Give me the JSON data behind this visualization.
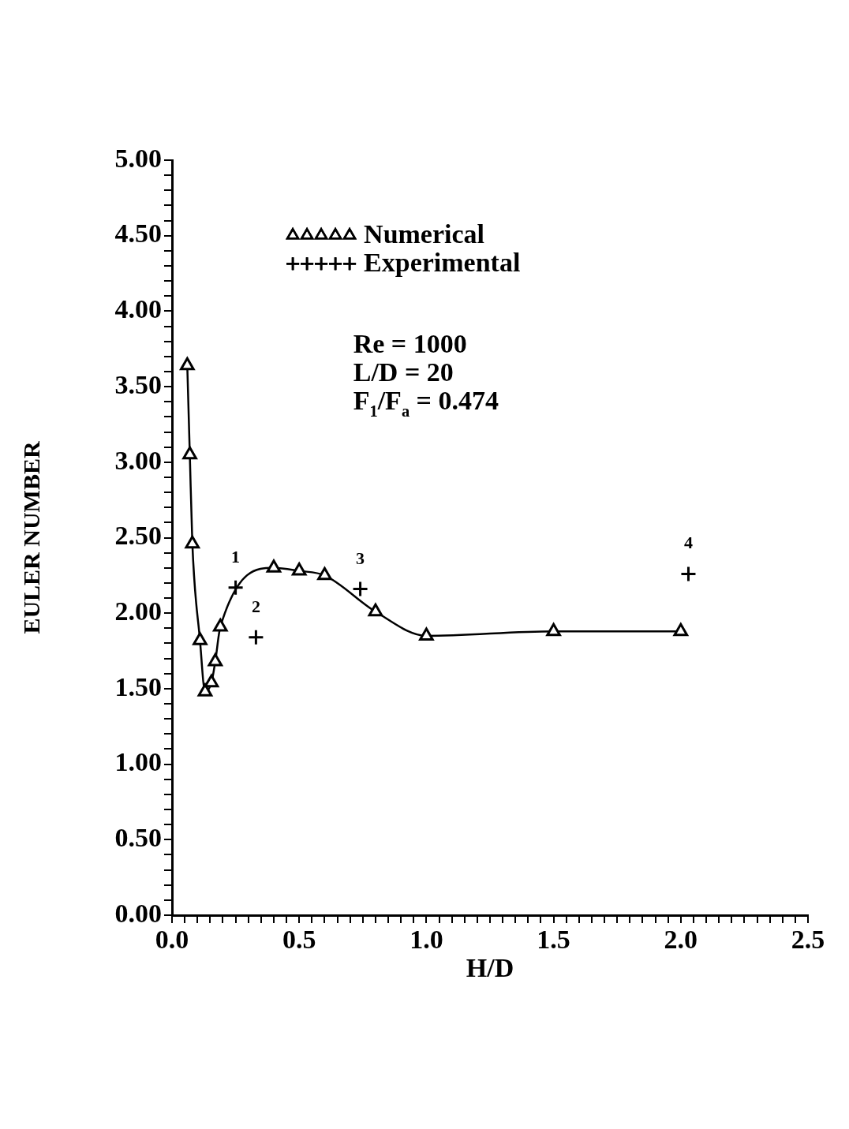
{
  "chart_data": {
    "type": "line",
    "xlabel": "H/D",
    "ylabel": "EULER NUMBER",
    "xlim": [
      0,
      2.5
    ],
    "ylim": [
      0,
      5
    ],
    "xticks": [
      {
        "value": 0,
        "label": "0.0"
      },
      {
        "value": 0.05,
        "label": null
      },
      {
        "value": 0.1,
        "label": null
      },
      {
        "value": 0.15,
        "label": null
      },
      {
        "value": 0.2,
        "label": null
      },
      {
        "value": 0.25,
        "label": null
      },
      {
        "value": 0.3,
        "label": null
      },
      {
        "value": 0.35,
        "label": null
      },
      {
        "value": 0.4,
        "label": null
      },
      {
        "value": 0.45,
        "label": null
      },
      {
        "value": 0.5,
        "label": "0.5"
      },
      {
        "value": 0.55,
        "label": null
      },
      {
        "value": 0.6,
        "label": null
      },
      {
        "value": 0.65,
        "label": null
      },
      {
        "value": 0.7,
        "label": null
      },
      {
        "value": 0.75,
        "label": null
      },
      {
        "value": 0.8,
        "label": null
      },
      {
        "value": 0.85,
        "label": null
      },
      {
        "value": 0.9,
        "label": null
      },
      {
        "value": 0.95,
        "label": null
      },
      {
        "value": 1,
        "label": "1.0"
      },
      {
        "value": 1.05,
        "label": null
      },
      {
        "value": 1.1,
        "label": null
      },
      {
        "value": 1.15,
        "label": null
      },
      {
        "value": 1.2,
        "label": null
      },
      {
        "value": 1.25,
        "label": null
      },
      {
        "value": 1.3,
        "label": null
      },
      {
        "value": 1.35,
        "label": null
      },
      {
        "value": 1.4,
        "label": null
      },
      {
        "value": 1.45,
        "label": null
      },
      {
        "value": 1.5,
        "label": "1.5"
      },
      {
        "value": 1.55,
        "label": null
      },
      {
        "value": 1.6,
        "label": null
      },
      {
        "value": 1.65,
        "label": null
      },
      {
        "value": 1.7,
        "label": null
      },
      {
        "value": 1.75,
        "label": null
      },
      {
        "value": 1.8,
        "label": null
      },
      {
        "value": 1.85,
        "label": null
      },
      {
        "value": 1.9,
        "label": null
      },
      {
        "value": 1.95,
        "label": null
      },
      {
        "value": 2,
        "label": "2.0"
      },
      {
        "value": 2.05,
        "label": null
      },
      {
        "value": 2.1,
        "label": null
      },
      {
        "value": 2.15,
        "label": null
      },
      {
        "value": 2.2,
        "label": null
      },
      {
        "value": 2.25,
        "label": null
      },
      {
        "value": 2.3,
        "label": null
      },
      {
        "value": 2.35,
        "label": null
      },
      {
        "value": 2.4,
        "label": null
      },
      {
        "value": 2.45,
        "label": null
      },
      {
        "value": 2.5,
        "label": "2.5"
      }
    ],
    "yticks": [
      {
        "value": 0,
        "label": "0.00"
      },
      {
        "value": 0.1,
        "label": null
      },
      {
        "value": 0.2,
        "label": null
      },
      {
        "value": 0.3,
        "label": null
      },
      {
        "value": 0.4,
        "label": null
      },
      {
        "value": 0.5,
        "label": "0.50"
      },
      {
        "value": 0.6,
        "label": null
      },
      {
        "value": 0.7,
        "label": null
      },
      {
        "value": 0.8,
        "label": null
      },
      {
        "value": 0.9,
        "label": null
      },
      {
        "value": 1,
        "label": "1.00"
      },
      {
        "value": 1.1,
        "label": null
      },
      {
        "value": 1.2,
        "label": null
      },
      {
        "value": 1.3,
        "label": null
      },
      {
        "value": 1.4,
        "label": null
      },
      {
        "value": 1.5,
        "label": "1.50"
      },
      {
        "value": 1.6,
        "label": null
      },
      {
        "value": 1.7,
        "label": null
      },
      {
        "value": 1.8,
        "label": null
      },
      {
        "value": 1.9,
        "label": null
      },
      {
        "value": 2,
        "label": "2.00"
      },
      {
        "value": 2.1,
        "label": null
      },
      {
        "value": 2.2,
        "label": null
      },
      {
        "value": 2.3,
        "label": null
      },
      {
        "value": 2.4,
        "label": null
      },
      {
        "value": 2.5,
        "label": "2.50"
      },
      {
        "value": 2.6,
        "label": null
      },
      {
        "value": 2.7,
        "label": null
      },
      {
        "value": 2.8,
        "label": null
      },
      {
        "value": 2.9,
        "label": null
      },
      {
        "value": 3,
        "label": "3.00"
      },
      {
        "value": 3.1,
        "label": null
      },
      {
        "value": 3.2,
        "label": null
      },
      {
        "value": 3.3,
        "label": null
      },
      {
        "value": 3.4,
        "label": null
      },
      {
        "value": 3.5,
        "label": "3.50"
      },
      {
        "value": 3.6,
        "label": null
      },
      {
        "value": 3.7,
        "label": null
      },
      {
        "value": 3.8,
        "label": null
      },
      {
        "value": 3.9,
        "label": null
      },
      {
        "value": 4,
        "label": "4.00"
      },
      {
        "value": 4.1,
        "label": null
      },
      {
        "value": 4.2,
        "label": null
      },
      {
        "value": 4.3,
        "label": null
      },
      {
        "value": 4.4,
        "label": null
      },
      {
        "value": 4.5,
        "label": "4.50"
      },
      {
        "value": 4.6,
        "label": null
      },
      {
        "value": 4.7,
        "label": null
      },
      {
        "value": 4.8,
        "label": null
      },
      {
        "value": 4.9,
        "label": null
      },
      {
        "value": 5,
        "label": "5.00"
      }
    ],
    "grid": false,
    "legend": "top",
    "series": [
      {
        "name": "Numerical",
        "type": "line",
        "color": "#000000",
        "marker": "triangle",
        "line_style": "solid",
        "x": [
          0.06,
          0.07,
          0.08,
          0.11,
          0.13,
          0.155,
          0.17,
          0.19,
          0.4,
          0.5,
          0.6,
          0.8,
          1.0,
          1.5,
          2.0
        ],
        "values": [
          3.64,
          3.05,
          2.46,
          1.82,
          1.48,
          1.54,
          1.68,
          1.91,
          2.3,
          2.28,
          2.25,
          2.01,
          1.85,
          1.88,
          1.88
        ]
      },
      {
        "name": "Experimental",
        "type": "scatter",
        "color": "#000000",
        "marker": "cross",
        "x": [
          0.25,
          0.33,
          0.74,
          2.03
        ],
        "values": [
          2.17,
          1.84,
          2.16,
          2.26
        ]
      }
    ],
    "annotations": [
      "Re = 1000",
      "L/D = 20",
      "F$_{1}$/F$_{a}$ = 0.474",
      {
        "text": "1",
        "x": 0.25,
        "y": 2.17
      },
      {
        "text": "2",
        "x": 0.33,
        "y": 1.84
      },
      {
        "text": "3",
        "x": 0.74,
        "y": 2.16
      },
      {
        "text": "4",
        "x": 2.03,
        "y": 2.26
      }
    ]
  }
}
